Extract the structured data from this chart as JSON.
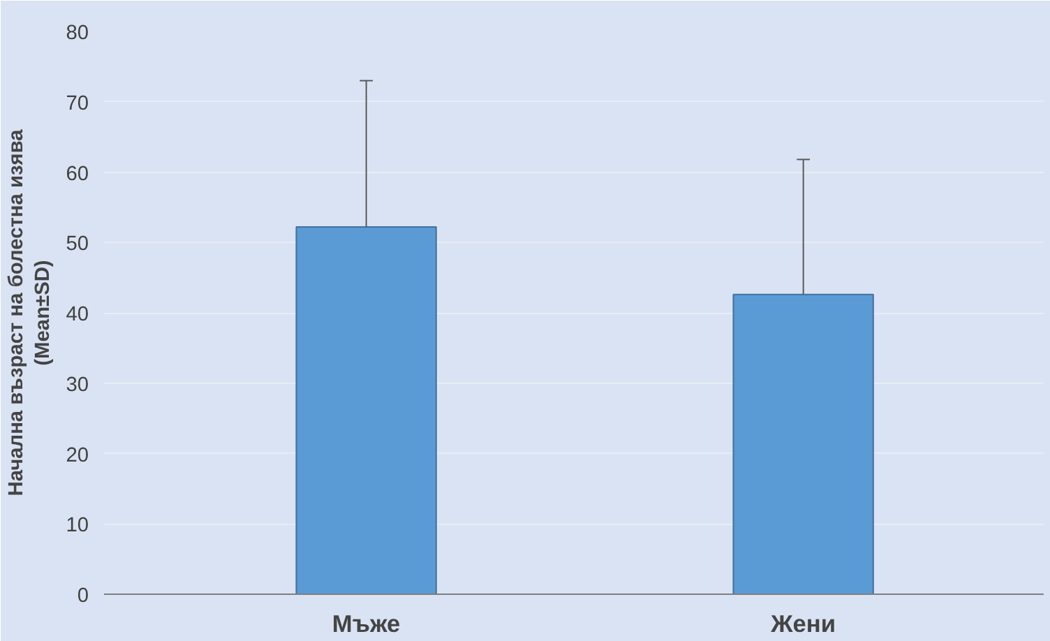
{
  "chart_data": {
    "type": "bar",
    "ylabel": "Начална възраст на болестна изява\n(Mean±SD)",
    "categories": [
      "Мъже",
      "Жени"
    ],
    "values": [
      52.2,
      42.6
    ],
    "errors": [
      [
        52.2,
        73.0
      ],
      [
        42.6,
        61.8
      ]
    ],
    "color": "#5b9bd5",
    "ylim": [
      0,
      80
    ],
    "yticks": [
      0,
      10,
      20,
      30,
      40,
      50,
      60,
      70,
      80
    ],
    "grid": "y"
  }
}
